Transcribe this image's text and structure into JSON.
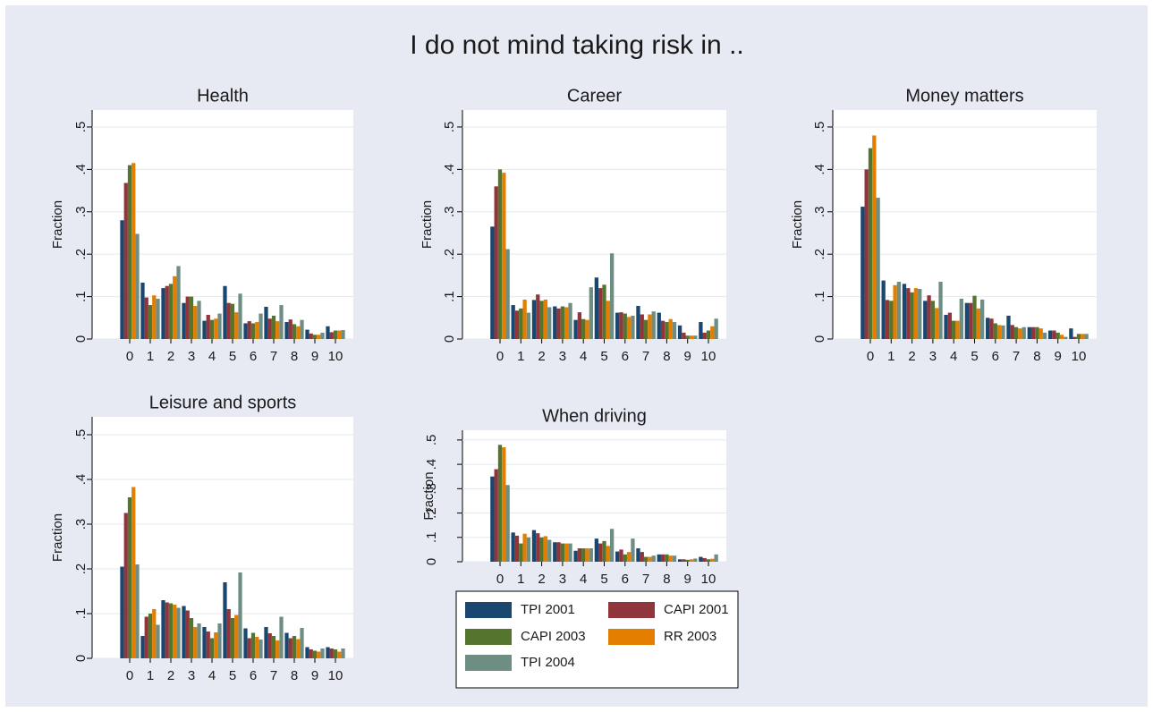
{
  "title": "I do not mind taking risk in ..",
  "chart_data": [
    {
      "type": "bar",
      "title": "Health",
      "y_label": "Fraction",
      "categories": [
        "0",
        "1",
        "2",
        "3",
        "4",
        "5",
        "6",
        "7",
        "8",
        "9",
        "10"
      ],
      "series": [
        {
          "name": "TPI 2001",
          "color": "#1a476f",
          "values": [
            0.28,
            0.133,
            0.12,
            0.085,
            0.043,
            0.125,
            0.037,
            0.076,
            0.04,
            0.022,
            0.03
          ]
        },
        {
          "name": "CAPI 2001",
          "color": "#90353b",
          "values": [
            0.368,
            0.098,
            0.125,
            0.1,
            0.057,
            0.085,
            0.042,
            0.048,
            0.046,
            0.013,
            0.016
          ]
        },
        {
          "name": "CAPI 2003",
          "color": "#55752f",
          "values": [
            0.41,
            0.08,
            0.13,
            0.1,
            0.045,
            0.083,
            0.037,
            0.055,
            0.035,
            0.01,
            0.02
          ]
        },
        {
          "name": "RR 2003",
          "color": "#e37e00",
          "values": [
            0.415,
            0.103,
            0.148,
            0.078,
            0.048,
            0.063,
            0.04,
            0.042,
            0.03,
            0.01,
            0.02
          ]
        },
        {
          "name": "TPI 2004",
          "color": "#6e8e84",
          "values": [
            0.248,
            0.095,
            0.172,
            0.09,
            0.06,
            0.107,
            0.06,
            0.08,
            0.045,
            0.015,
            0.021
          ]
        }
      ],
      "ylim": [
        0,
        0.54
      ],
      "yticks": [
        0,
        {
          "value": 0.1,
          "label": ".1"
        },
        {
          "value": 0.2,
          "label": ".2"
        },
        {
          "value": 0.3,
          "label": ".3"
        },
        {
          "value": 0.4,
          "label": ".4"
        },
        {
          "value": 0.5,
          "label": ".5"
        }
      ],
      "grid": true
    },
    {
      "type": "bar",
      "title": "Career",
      "y_label": "Fraction",
      "categories": [
        "0",
        "1",
        "2",
        "3",
        "4",
        "5",
        "6",
        "7",
        "8",
        "9",
        "10"
      ],
      "series": [
        {
          "name": "TPI 2001",
          "color": "#1a476f",
          "values": [
            0.265,
            0.08,
            0.092,
            0.077,
            0.045,
            0.145,
            0.062,
            0.078,
            0.062,
            0.032,
            0.04
          ]
        },
        {
          "name": "CAPI 2001",
          "color": "#90353b",
          "values": [
            0.36,
            0.067,
            0.105,
            0.072,
            0.063,
            0.12,
            0.063,
            0.058,
            0.043,
            0.015,
            0.015
          ]
        },
        {
          "name": "CAPI 2003",
          "color": "#55752f",
          "values": [
            0.4,
            0.072,
            0.09,
            0.077,
            0.047,
            0.128,
            0.06,
            0.045,
            0.04,
            0.008,
            0.02
          ]
        },
        {
          "name": "RR 2003",
          "color": "#e37e00",
          "values": [
            0.392,
            0.093,
            0.093,
            0.075,
            0.045,
            0.09,
            0.052,
            0.058,
            0.047,
            0.008,
            0.03
          ]
        },
        {
          "name": "TPI 2004",
          "color": "#6e8e84",
          "values": [
            0.212,
            0.062,
            0.075,
            0.085,
            0.122,
            0.202,
            0.055,
            0.065,
            0.04,
            0.008,
            0.048
          ]
        }
      ],
      "ylim": [
        0,
        0.54
      ],
      "yticks": [
        0,
        {
          "value": 0.1,
          "label": ".1"
        },
        {
          "value": 0.2,
          "label": ".2"
        },
        {
          "value": 0.3,
          "label": ".3"
        },
        {
          "value": 0.4,
          "label": ".4"
        },
        {
          "value": 0.5,
          "label": ".5"
        }
      ],
      "grid": true
    },
    {
      "type": "bar",
      "title": "Money matters",
      "y_label": "Fraction",
      "categories": [
        "0",
        "1",
        "2",
        "3",
        "4",
        "5",
        "6",
        "7",
        "8",
        "9",
        "10"
      ],
      "series": [
        {
          "name": "TPI 2001",
          "color": "#1a476f",
          "values": [
            0.312,
            0.138,
            0.13,
            0.09,
            0.057,
            0.085,
            0.05,
            0.055,
            0.028,
            0.02,
            0.025
          ]
        },
        {
          "name": "CAPI 2001",
          "color": "#90353b",
          "values": [
            0.4,
            0.092,
            0.12,
            0.103,
            0.062,
            0.085,
            0.048,
            0.033,
            0.028,
            0.02,
            0.005
          ]
        },
        {
          "name": "CAPI 2003",
          "color": "#55752f",
          "values": [
            0.45,
            0.09,
            0.11,
            0.09,
            0.043,
            0.102,
            0.037,
            0.028,
            0.028,
            0.015,
            0.012
          ]
        },
        {
          "name": "RR 2003",
          "color": "#e37e00",
          "values": [
            0.48,
            0.127,
            0.12,
            0.073,
            0.043,
            0.072,
            0.033,
            0.025,
            0.025,
            0.01,
            0.012
          ]
        },
        {
          "name": "TPI 2004",
          "color": "#6e8e84",
          "values": [
            0.333,
            0.135,
            0.118,
            0.135,
            0.095,
            0.093,
            0.032,
            0.028,
            0.015,
            0.005,
            0.012
          ]
        }
      ],
      "ylim": [
        0,
        0.54
      ],
      "yticks": [
        0,
        {
          "value": 0.1,
          "label": ".1"
        },
        {
          "value": 0.2,
          "label": ".2"
        },
        {
          "value": 0.3,
          "label": ".3"
        },
        {
          "value": 0.4,
          "label": ".4"
        },
        {
          "value": 0.5,
          "label": ".5"
        }
      ],
      "grid": true
    },
    {
      "type": "bar",
      "title": "Leisure and sports",
      "y_label": "Fraction",
      "categories": [
        "0",
        "1",
        "2",
        "3",
        "4",
        "5",
        "6",
        "7",
        "8",
        "9",
        "10"
      ],
      "series": [
        {
          "name": "TPI 2001",
          "color": "#1a476f",
          "values": [
            0.205,
            0.05,
            0.13,
            0.117,
            0.07,
            0.17,
            0.067,
            0.07,
            0.057,
            0.025,
            0.025
          ]
        },
        {
          "name": "CAPI 2001",
          "color": "#90353b",
          "values": [
            0.325,
            0.093,
            0.125,
            0.107,
            0.06,
            0.11,
            0.045,
            0.056,
            0.045,
            0.02,
            0.022
          ]
        },
        {
          "name": "CAPI 2003",
          "color": "#55752f",
          "values": [
            0.36,
            0.1,
            0.123,
            0.09,
            0.045,
            0.09,
            0.057,
            0.05,
            0.05,
            0.017,
            0.02
          ]
        },
        {
          "name": "RR 2003",
          "color": "#e37e00",
          "values": [
            0.383,
            0.11,
            0.12,
            0.07,
            0.058,
            0.097,
            0.048,
            0.04,
            0.043,
            0.015,
            0.015
          ]
        },
        {
          "name": "TPI 2004",
          "color": "#6e8e84",
          "values": [
            0.21,
            0.075,
            0.113,
            0.078,
            0.078,
            0.192,
            0.042,
            0.093,
            0.068,
            0.022,
            0.022
          ]
        }
      ],
      "ylim": [
        0,
        0.54
      ],
      "yticks": [
        0,
        {
          "value": 0.1,
          "label": ".1"
        },
        {
          "value": 0.2,
          "label": ".2"
        },
        {
          "value": 0.3,
          "label": ".3"
        },
        {
          "value": 0.4,
          "label": ".4"
        },
        {
          "value": 0.5,
          "label": ".5"
        }
      ],
      "grid": true
    },
    {
      "type": "bar",
      "title": "When driving",
      "y_label": "Fraction",
      "categories": [
        "0",
        "1",
        "2",
        "3",
        "4",
        "5",
        "6",
        "7",
        "8",
        "9",
        "10"
      ],
      "series": [
        {
          "name": "TPI 2001",
          "color": "#1a476f",
          "values": [
            0.35,
            0.12,
            0.13,
            0.08,
            0.045,
            0.095,
            0.042,
            0.055,
            0.03,
            0.01,
            0.02
          ]
        },
        {
          "name": "CAPI 2001",
          "color": "#90353b",
          "values": [
            0.38,
            0.107,
            0.117,
            0.08,
            0.055,
            0.075,
            0.05,
            0.04,
            0.03,
            0.01,
            0.015
          ]
        },
        {
          "name": "CAPI 2003",
          "color": "#55752f",
          "values": [
            0.48,
            0.075,
            0.1,
            0.075,
            0.055,
            0.085,
            0.03,
            0.02,
            0.03,
            0.008,
            0.01
          ]
        },
        {
          "name": "RR 2003",
          "color": "#e37e00",
          "values": [
            0.47,
            0.115,
            0.105,
            0.075,
            0.055,
            0.065,
            0.04,
            0.02,
            0.025,
            0.01,
            0.012
          ]
        },
        {
          "name": "TPI 2004",
          "color": "#6e8e84",
          "values": [
            0.315,
            0.1,
            0.09,
            0.075,
            0.055,
            0.135,
            0.095,
            0.025,
            0.025,
            0.013,
            0.03
          ]
        }
      ],
      "ylim": [
        0,
        0.54
      ],
      "yticks": [
        0,
        {
          "value": 0.1,
          "label": ".1"
        },
        {
          "value": 0.2,
          "label": ".2"
        },
        {
          "value": 0.3,
          "label": ".3"
        },
        {
          "value": 0.4,
          "label": ".4"
        },
        {
          "value": 0.5,
          "label": ".5"
        }
      ],
      "grid": true
    }
  ]
}
